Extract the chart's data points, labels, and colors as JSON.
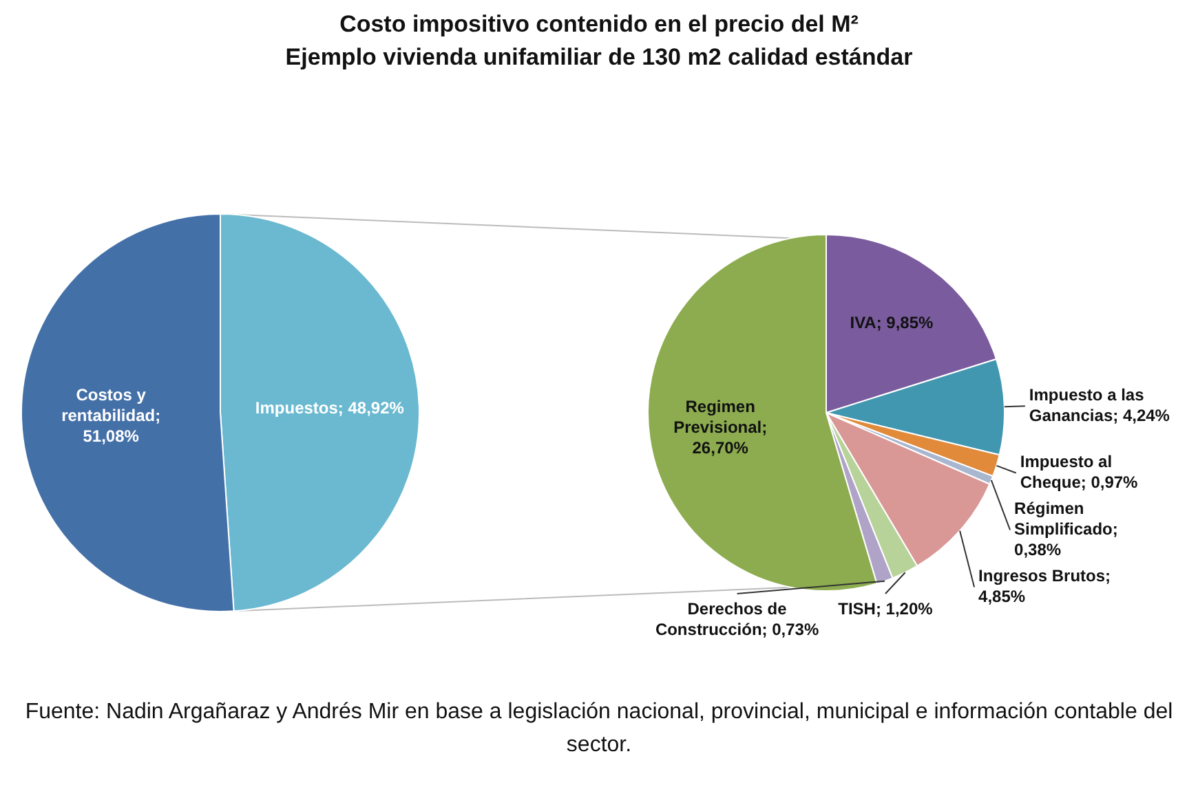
{
  "chart_data": [
    {
      "type": "pie",
      "title": "Costo impositivo contenido en el precio del M²",
      "subtitle": "Ejemplo vivienda unifamiliar de 130 m2 calidad estándar",
      "categories": [
        "Impuestos",
        "Costos y rentabilidad"
      ],
      "values": [
        48.92,
        51.08
      ],
      "colors": [
        "#6ab9d0",
        "#4470a8"
      ],
      "value_labels": [
        "; 48,92%",
        "; 51,08%"
      ]
    },
    {
      "type": "pie",
      "categories": [
        "IVA",
        "Impuesto a las Ganancias",
        "Impuesto al Cheque",
        "Régimen Simplificado",
        "Ingresos Brutos",
        "TISH",
        "Derechos de Construcción",
        "Regimen Previsional"
      ],
      "values": [
        9.85,
        4.24,
        0.97,
        0.38,
        4.85,
        1.2,
        0.73,
        26.7
      ],
      "colors": [
        "#7a5c9e",
        "#4196b0",
        "#e08a3a",
        "#a9b6d0",
        "#d99795",
        "#b8d39a",
        "#b0a3c8",
        "#8cac4f"
      ],
      "value_labels": [
        "; 9,85%",
        "; 4,24%",
        "; 0,97%",
        "; 0,38%",
        "; 4,85%",
        "; 1,20%",
        "; 0,73%",
        "; 26,70%"
      ],
      "annotations": [
        "Fuente: Nadin Argañaraz y Andrés Mir en base a legislación nacional, provincial, municipal e información contable del sector."
      ]
    }
  ]
}
